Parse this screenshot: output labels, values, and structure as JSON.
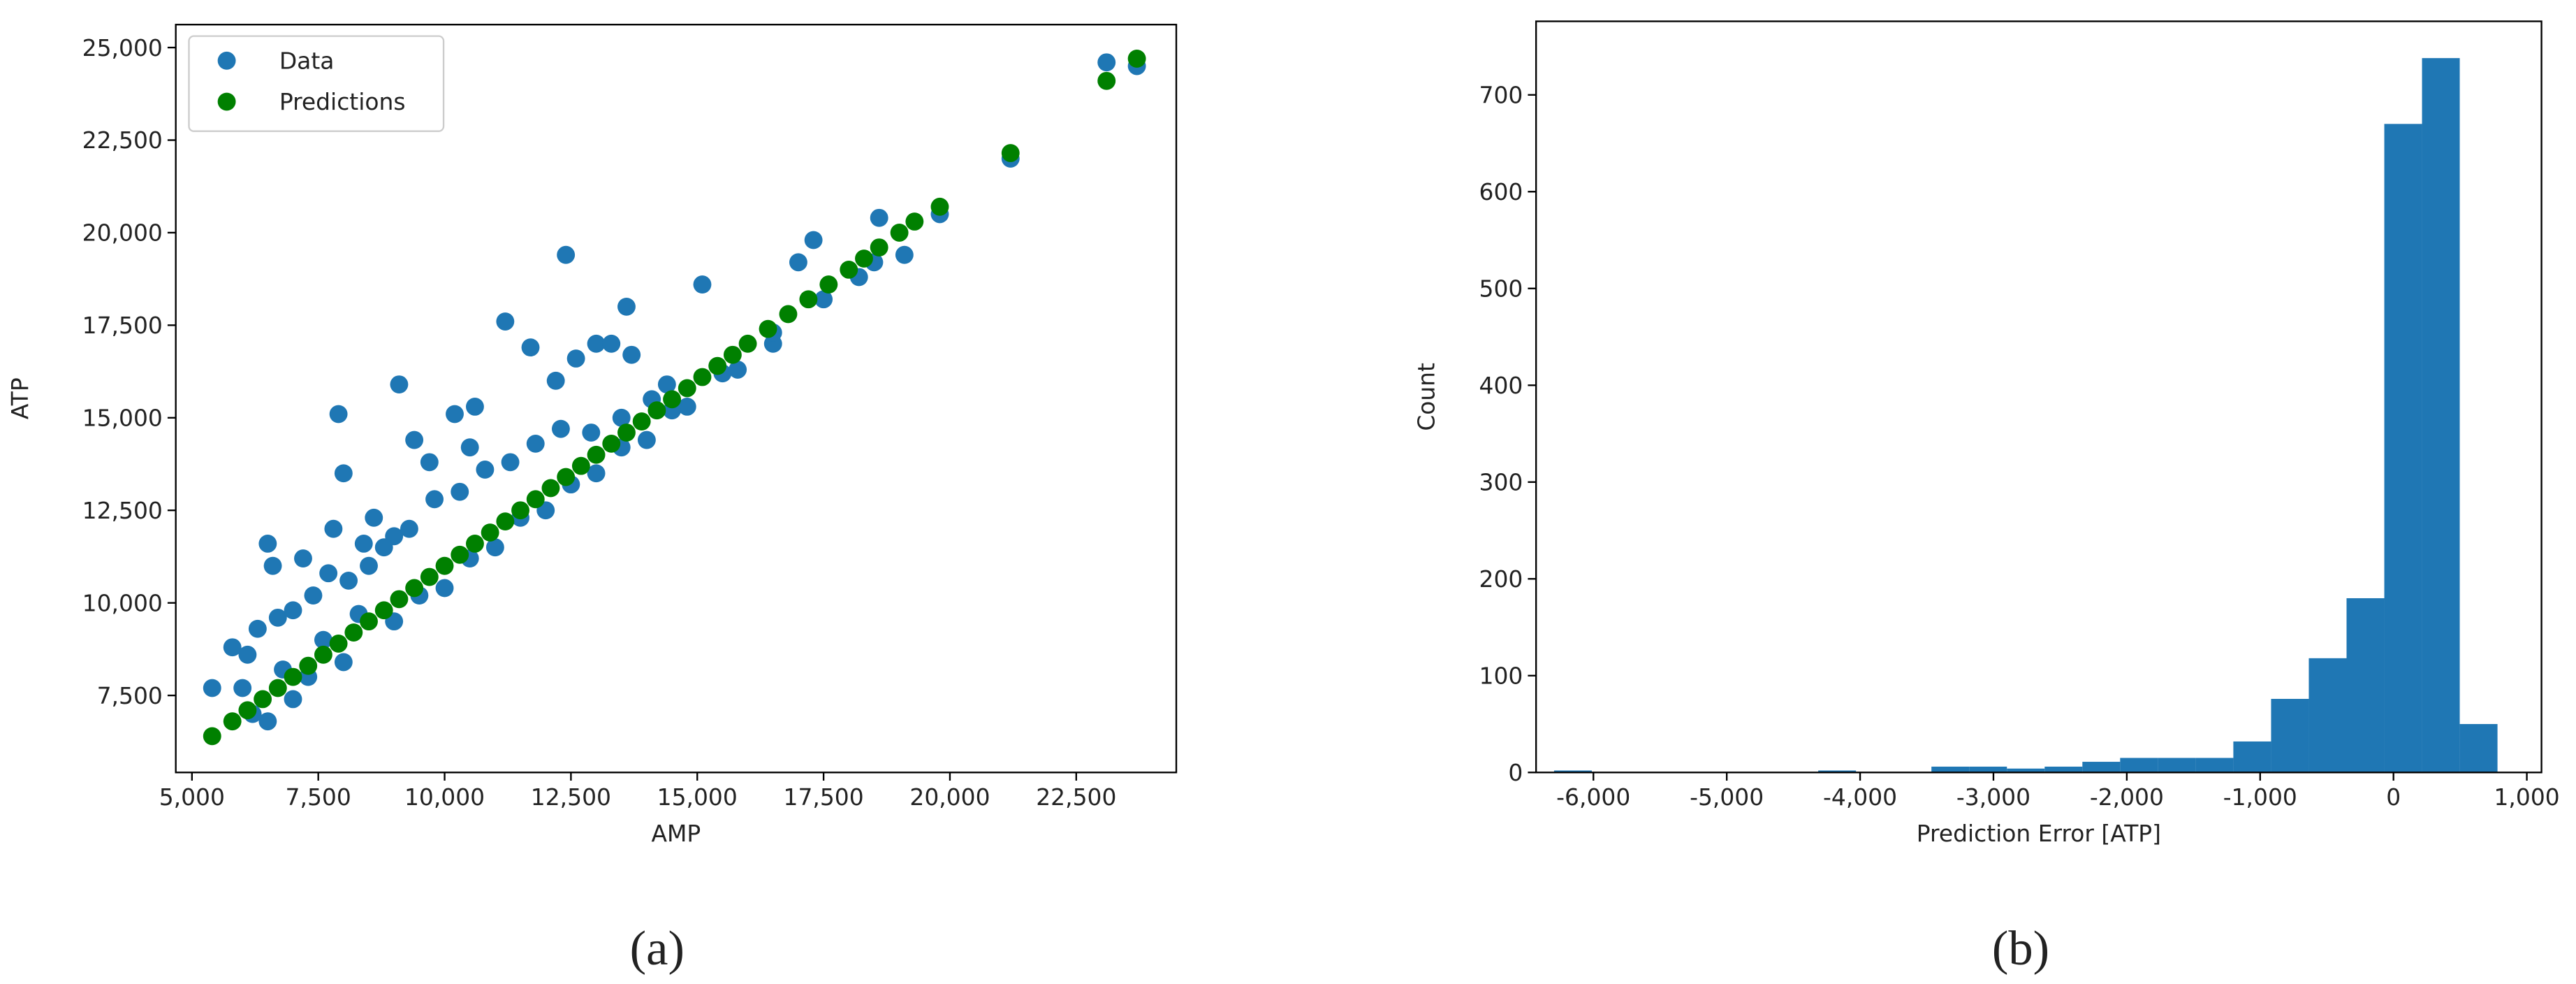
{
  "chart_data": [
    {
      "type": "scatter",
      "caption": "(a)",
      "x_label": "AMP",
      "y_label": "ATP",
      "xlim": [
        4680,
        24480
      ],
      "ylim": [
        5420,
        25620
      ],
      "xticks": [
        {
          "value": 5000,
          "label": "5,000"
        },
        {
          "value": 7500,
          "label": "7,500"
        },
        {
          "value": 10000,
          "label": "10,000"
        },
        {
          "value": 12500,
          "label": "12,500"
        },
        {
          "value": 15000,
          "label": "15,000"
        },
        {
          "value": 17500,
          "label": "17,500"
        },
        {
          "value": 20000,
          "label": "20,000"
        },
        {
          "value": 22500,
          "label": "22,500"
        }
      ],
      "yticks": [
        {
          "value": 7500,
          "label": "7,500"
        },
        {
          "value": 10000,
          "label": "10,000"
        },
        {
          "value": 12500,
          "label": "12,500"
        },
        {
          "value": 15000,
          "label": "15,000"
        },
        {
          "value": 17500,
          "label": "17,500"
        },
        {
          "value": 20000,
          "label": "20,000"
        },
        {
          "value": 22500,
          "label": "22,500"
        },
        {
          "value": 25000,
          "label": "25,000"
        }
      ],
      "legend": "upper left",
      "series": [
        {
          "name": "Data",
          "color": "#1f77b4",
          "x": [
            5400,
            5800,
            6100,
            6500,
            6600,
            7200,
            7800,
            7900,
            8000,
            8600,
            8400,
            9000,
            9100,
            9400,
            9700,
            10200,
            10500,
            10600,
            11200,
            11700,
            12200,
            12400,
            12600,
            13000,
            13300,
            13600,
            13700,
            14100,
            14400,
            15100,
            17000,
            17300,
            18600,
            19800,
            21200,
            23100,
            23700,
            19100,
            18200,
            16500,
            15800,
            14800,
            14000,
            13000,
            12000,
            11000,
            10000,
            9000,
            8000,
            7000,
            6500,
            6200,
            6000,
            6300,
            6700,
            7000,
            7400,
            7700,
            8100,
            8500,
            8800,
            9300,
            9800,
            10300,
            10800,
            11300,
            11800,
            12300,
            12900,
            13500,
            7300,
            7600,
            6800,
            8300,
            9500,
            10500,
            11500,
            12500,
            13500,
            14500,
            15500,
            16500,
            17500,
            18500
          ],
          "values": [
            7700,
            8800,
            8600,
            11600,
            11000,
            11200,
            12000,
            15100,
            13500,
            12300,
            11600,
            11800,
            15900,
            14400,
            13800,
            15100,
            14200,
            15300,
            17600,
            16900,
            16000,
            19400,
            16600,
            17000,
            17000,
            18000,
            16700,
            15500,
            15900,
            18600,
            19200,
            19800,
            20400,
            20500,
            22000,
            24600,
            24500,
            19400,
            18800,
            17000,
            16300,
            15300,
            14400,
            13500,
            12500,
            11500,
            10400,
            9500,
            8400,
            7400,
            6800,
            7000,
            7700,
            9300,
            9600,
            9800,
            10200,
            10800,
            10600,
            11000,
            11500,
            12000,
            12800,
            13000,
            13600,
            13800,
            14300,
            14700,
            14600,
            15000,
            8000,
            9000,
            8200,
            9700,
            10200,
            11200,
            12300,
            13200,
            14200,
            15200,
            16200,
            17300,
            18200,
            19200
          ]
        },
        {
          "name": "Predictions",
          "color": "#008000",
          "x": [
            5400,
            5800,
            6100,
            6400,
            6700,
            7000,
            7300,
            7600,
            7900,
            8200,
            8500,
            8800,
            9100,
            9400,
            9700,
            10000,
            10300,
            10600,
            10900,
            11200,
            11500,
            11800,
            12100,
            12400,
            12700,
            13000,
            13300,
            13600,
            13900,
            14200,
            14500,
            14800,
            15100,
            15400,
            15700,
            16000,
            16400,
            16800,
            17200,
            17600,
            18000,
            18300,
            18600,
            19000,
            19300,
            19800,
            21200,
            23100,
            23700
          ],
          "values": [
            6400,
            6800,
            7100,
            7400,
            7700,
            8000,
            8300,
            8600,
            8900,
            9200,
            9500,
            9800,
            10100,
            10400,
            10700,
            11000,
            11300,
            11600,
            11900,
            12200,
            12500,
            12800,
            13100,
            13400,
            13700,
            14000,
            14300,
            14600,
            14900,
            15200,
            15500,
            15800,
            16100,
            16400,
            16700,
            17000,
            17400,
            17800,
            18200,
            18600,
            19000,
            19300,
            19600,
            20000,
            20300,
            20700,
            22150,
            24100,
            24700
          ]
        }
      ]
    },
    {
      "type": "histogram",
      "caption": "(b)",
      "x_label": "Prediction Error [ATP]",
      "y_label": "Count",
      "color": "#1f77b4",
      "xlim": [
        -6430,
        1110
      ],
      "ylim": [
        0,
        776
      ],
      "xticks": [
        {
          "value": -6000,
          "label": "-6,000"
        },
        {
          "value": -5000,
          "label": "-5,000"
        },
        {
          "value": -4000,
          "label": "-4,000"
        },
        {
          "value": -3000,
          "label": "-3,000"
        },
        {
          "value": -2000,
          "label": "-2,000"
        },
        {
          "value": -1000,
          "label": "-1,000"
        },
        0,
        {
          "value": 1000,
          "label": "1,000"
        }
      ],
      "yticks": [
        0,
        100,
        200,
        300,
        400,
        500,
        600,
        700
      ],
      "bins": [
        -6295,
        -6012,
        -5729,
        -5446,
        -5163,
        -4880,
        -4597,
        -4314,
        -4031,
        -3748,
        -3465,
        -3182,
        -2899,
        -2616,
        -2333,
        -2050,
        -1767,
        -1484,
        -1201,
        -918,
        -635,
        -352,
        -69,
        214,
        497,
        780
      ],
      "values": [
        2,
        0,
        0,
        0,
        0,
        0,
        0,
        2,
        0,
        0,
        6,
        6,
        4,
        6,
        11,
        15,
        15,
        15,
        32,
        76,
        118,
        180,
        670,
        738,
        50
      ]
    }
  ]
}
